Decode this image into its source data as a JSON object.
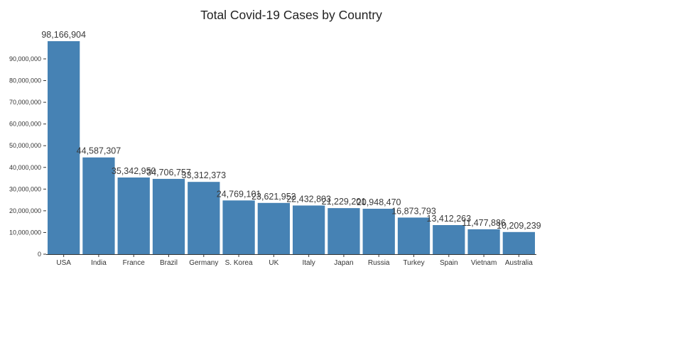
{
  "chart_data": {
    "type": "bar",
    "title": "Total Covid-19 Cases by Country",
    "xlabel": "",
    "ylabel": "",
    "categories": [
      "USA",
      "India",
      "France",
      "Brazil",
      "Germany",
      "S. Korea",
      "UK",
      "Italy",
      "Japan",
      "Russia",
      "Turkey",
      "Spain",
      "Vietnam",
      "Australia"
    ],
    "values": [
      98166904,
      44587307,
      35342950,
      34706757,
      33312373,
      24769101,
      23621952,
      22432803,
      21229201,
      20948470,
      16873793,
      13412263,
      11477886,
      10209239
    ],
    "value_labels": [
      "98,166,904",
      "44,587,307",
      "35,342,950",
      "34,706,757",
      "33,312,373",
      "24,769,101",
      "23,621,952",
      "22,432,803",
      "21,229,201",
      "20,948,470",
      "16,873,793",
      "13,412,263",
      "11,477,886",
      "10,209,239"
    ],
    "yticks": [
      0,
      10000000,
      20000000,
      30000000,
      40000000,
      50000000,
      60000000,
      70000000,
      80000000,
      90000000
    ],
    "ytick_labels": [
      "0",
      "10,000,000",
      "20,000,000",
      "30,000,000",
      "40,000,000",
      "50,000,000",
      "60,000,000",
      "70,000,000",
      "80,000,000",
      "90,000,000"
    ],
    "ylim": [
      0,
      98166904
    ],
    "bar_color": "#4682b4",
    "text_color": "#333333",
    "axis_color": "#333333",
    "grid": false,
    "legend_position": "none"
  }
}
